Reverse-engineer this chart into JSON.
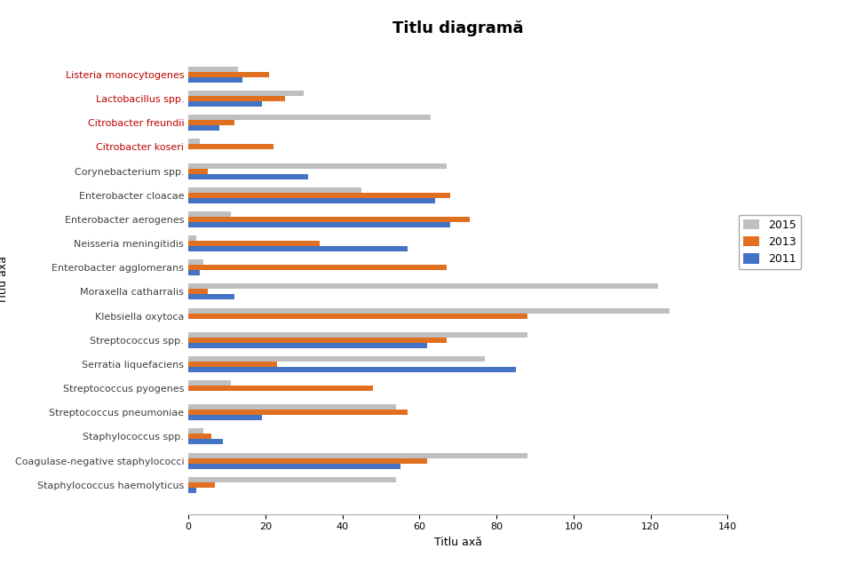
{
  "title": "Titlu diagramă",
  "xlabel": "Titlu axă",
  "ylabel": "Titlu axă",
  "categories": [
    "Listeria monocytogenes",
    "Lactobacillus spp.",
    "Citrobacter freundii",
    "Citrobacter koseri",
    "Corynebacterium spp.",
    "Enterobacter cloacae",
    "Enterobacter aerogenes",
    "Neisseria meningitidis",
    "Enterobacter agglomerans",
    "Moraxella catharralis",
    "Klebsiella oxytoca",
    "Streptococcus spp.",
    "Serratia liquefaciens",
    "Streptococcus pyogenes",
    "Streptococcus pneumoniae",
    "Staphylococcus spp.",
    "Coagulase-negative staphylococci",
    "Staphylococcus haemolyticus"
  ],
  "series": {
    "2015": [
      13,
      30,
      63,
      3,
      67,
      45,
      11,
      2,
      4,
      122,
      125,
      88,
      77,
      11,
      54,
      4,
      88,
      54
    ],
    "2013": [
      21,
      25,
      12,
      22,
      5,
      68,
      73,
      34,
      67,
      5,
      88,
      67,
      23,
      48,
      57,
      6,
      62,
      7
    ],
    "2011": [
      14,
      19,
      8,
      0,
      31,
      64,
      68,
      57,
      3,
      12,
      0,
      62,
      85,
      0,
      19,
      9,
      55,
      2
    ]
  },
  "colors": {
    "2015": "#BFBFBF",
    "2013": "#E07020",
    "2011": "#4472C4"
  },
  "legend_labels": [
    "2015",
    "2013",
    "2011"
  ],
  "xlim": [
    0,
    140
  ],
  "xticks": [
    0,
    20,
    40,
    60,
    80,
    100,
    120,
    140
  ],
  "bar_height": 0.22,
  "title_fontsize": 13,
  "axis_label_fontsize": 9,
  "tick_fontsize": 8,
  "legend_fontsize": 9,
  "background_color": "#FFFFFF",
  "label_color_default": "#404040",
  "label_color_red": "#C00000",
  "red_labels": [
    "Listeria monocytogenes",
    "Lactobacillus spp.",
    "Citrobacter freundii",
    "Citrobacter koseri"
  ]
}
